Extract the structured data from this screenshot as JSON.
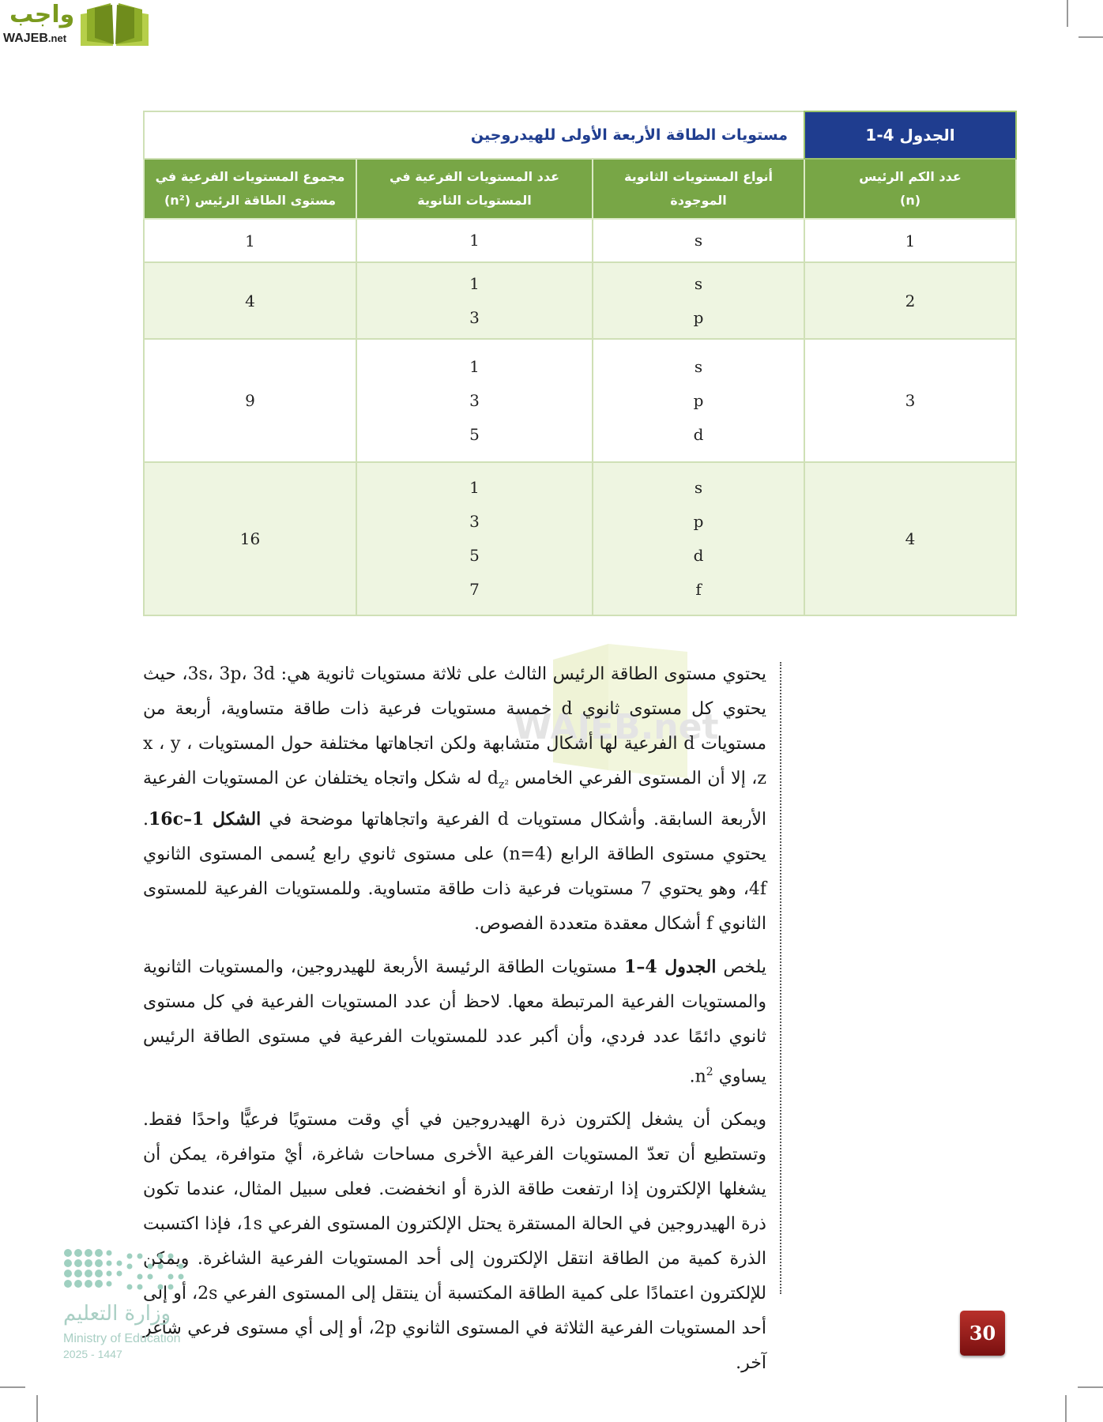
{
  "brand": {
    "logo_ar": "واجب",
    "logo_en": "WAJEB",
    "logo_en_suffix": ".net"
  },
  "table": {
    "label": "الجدول 4-1",
    "title": "مستويات الطاقة الأربعة الأولى للهيدروجين",
    "headers": [
      [
        "عدد الكم الرئيس",
        "(n)"
      ],
      [
        "أنواع المستويات الثانوية",
        "الموجودة"
      ],
      [
        "عدد المستويات الفرعية في",
        "المستويات الثانوية"
      ],
      [
        "مجموع المستويات الفرعية في",
        "مستوى الطاقة الرئيس (n²)"
      ]
    ],
    "rows": [
      {
        "n": "1",
        "types": [
          "s"
        ],
        "counts": [
          "1"
        ],
        "total": "1"
      },
      {
        "n": "2",
        "types": [
          "s",
          "p"
        ],
        "counts": [
          "1",
          "3"
        ],
        "total": "4"
      },
      {
        "n": "3",
        "types": [
          "s",
          "p",
          "d"
        ],
        "counts": [
          "1",
          "3",
          "5"
        ],
        "total": "9"
      },
      {
        "n": "4",
        "types": [
          "s",
          "p",
          "d",
          "f"
        ],
        "counts": [
          "1",
          "3",
          "5",
          "7"
        ],
        "total": "16"
      }
    ]
  },
  "paragraphs": [
    [
      {
        "t": "يحتوي مستوى الطاقة الرئيس الثالث على ثلاثة مستويات ثانوية هي: 3s، 3p، 3d، حيث يحتوي كل مستوى ثانوي d خمسة مستويات فرعية ذات طاقة متساوية، أربعة من مستويات d الفرعية لها أشكال متشابهة ولكن اتجاهاتها مختلفة حول المستويات x ، y ، z، إلا أن المستوى الفرعي الخامس d"
      },
      {
        "t": "z²",
        "sub": true
      },
      {
        "t": " له شكل واتجاه يختلفان عن المستويات الفرعية الأربعة السابقة. وأشكال مستويات d الفرعية واتجاهاتها موضحة في "
      },
      {
        "t": "الشكل 16c–1",
        "b": true
      },
      {
        "t": ". يحتوي مستوى الطاقة الرابع (n=4) على مستوى ثانوي رابع يُسمى المستوى الثانوي 4f، وهو يحتوي 7 مستويات فرعية ذات طاقة متساوية. وللمستويات الفرعية للمستوى الثانوي f أشكال معقدة متعددة الفصوص."
      }
    ],
    [
      {
        "t": "يلخص "
      },
      {
        "t": "الجدول 4–1",
        "b": true
      },
      {
        "t": " مستويات الطاقة الرئيسة الأربعة للهيدروجين، والمستويات الثانوية والمستويات الفرعية المرتبطة معها. لاحظ أن عدد المستويات الفرعية في كل مستوى ثانوي دائمًا عدد فردي، وأن أكبر عدد للمستويات الفرعية في مستوى الطاقة الرئيس يساوي n"
      },
      {
        "t": "2",
        "sup": true
      },
      {
        "t": "."
      }
    ],
    [
      {
        "t": "ويمكن أن يشغل إلكترون ذرة الهيدروجين في أي وقت مستويًا فرعيًّا واحدًا فقط. وتستطيع أن تعدّ المستويات الفرعية الأخرى مساحات شاغرة، أيْ متوافرة، يمكن أن يشغلها الإلكترون إذا ارتفعت طاقة الذرة أو انخفضت. فعلى سبيل المثال، عندما تكون ذرة الهيدروجين في الحالة المستقرة يحتل الإلكترون المستوى الفرعي 1s، فإذا اكتسبت الذرة كمية من الطاقة انتقل الإلكترون إلى أحد المستويات الفرعية الشاغرة. ويمكن للإلكترون اعتمادًا على كمية الطاقة المكتسبة أن ينتقل إلى المستوى الفرعي 2s، أو إلى أحد المستويات الفرعية الثلاثة في المستوى الثانوي 2p، أو إلى أي مستوى فرعي شاغر آخر."
      }
    ]
  ],
  "ministry": {
    "ar": "وزارة التعليم",
    "en": "Ministry of Education",
    "year": "2025 - 1447"
  },
  "page_number": "30",
  "colors": {
    "label_blue": "#1f3d8f",
    "header_green": "#78a646",
    "row_tint": "#eef5e1",
    "page_badge": "#9b1f1a"
  }
}
